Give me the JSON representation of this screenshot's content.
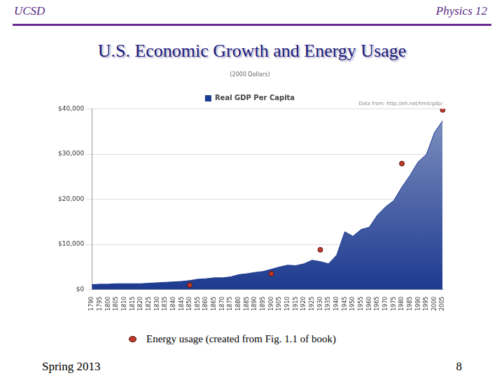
{
  "header": {
    "left": "UCSD",
    "right": "Physics 12"
  },
  "title": "U.S. Economic Growth and Energy Usage",
  "footer": {
    "left": "Spring 2013",
    "right": "8"
  },
  "chart_data": {
    "type": "line",
    "subtitle": "(2000 Dollars)",
    "annotations": [
      "Data from: http://eh.net/hmit/gdp/"
    ],
    "categories": [
      "1790",
      "1795",
      "1800",
      "1805",
      "1810",
      "1815",
      "1820",
      "1825",
      "1830",
      "1835",
      "1840",
      "1845",
      "1850",
      "1855",
      "1860",
      "1865",
      "1870",
      "1875",
      "1880",
      "1885",
      "1890",
      "1895",
      "1900",
      "1905",
      "1910",
      "1915",
      "1920",
      "1925",
      "1930",
      "1935",
      "1940",
      "1945",
      "1950",
      "1955",
      "1960",
      "1965",
      "1970",
      "1975",
      "1980",
      "1985",
      "1990",
      "1995",
      "2000",
      "2005"
    ],
    "series": [
      {
        "name": "Real GDP Per Capita",
        "type": "area",
        "color": "#1c3a8f",
        "values": [
          1100,
          1200,
          1200,
          1300,
          1300,
          1300,
          1300,
          1400,
          1500,
          1600,
          1700,
          1800,
          2000,
          2300,
          2400,
          2600,
          2600,
          2800,
          3300,
          3500,
          3800,
          4000,
          4500,
          5000,
          5400,
          5300,
          5700,
          6500,
          6200,
          5700,
          7600,
          12800,
          11800,
          13300,
          13800,
          16500,
          18300,
          19700,
          22700,
          25300,
          28300,
          29900,
          34800,
          37400
        ]
      },
      {
        "name": "Energy usage (created from Fig. 1.1 of book)",
        "type": "scatter",
        "marker": "circle",
        "color": "#c0392b",
        "values": [
          null,
          null,
          null,
          null,
          null,
          null,
          null,
          null,
          null,
          null,
          null,
          null,
          1000,
          null,
          null,
          null,
          null,
          null,
          null,
          null,
          null,
          null,
          3500,
          null,
          null,
          null,
          null,
          null,
          8800,
          null,
          null,
          null,
          null,
          null,
          null,
          null,
          null,
          null,
          27900,
          null,
          null,
          null,
          null,
          39800
        ]
      }
    ],
    "ylim": [
      0,
      40000
    ],
    "yticks": [
      {
        "value": 0,
        "label": "$0"
      },
      {
        "value": 10000,
        "label": "$10,000"
      },
      {
        "value": 20000,
        "label": "$20,000"
      },
      {
        "value": 30000,
        "label": "$30,000"
      },
      {
        "value": 40000,
        "label": "$40,000"
      }
    ],
    "grid": true,
    "legend": "top"
  }
}
